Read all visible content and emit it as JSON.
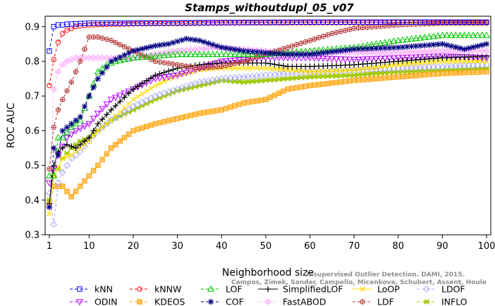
{
  "chart_data": {
    "type": "line",
    "title": "Stamps_withoutdupl_05_v07",
    "xlabel": "Neighborhood size",
    "ylabel": "ROC AUC",
    "xlim": [
      1,
      100
    ],
    "ylim": [
      0.3,
      0.93
    ],
    "xticks": [
      1,
      10,
      20,
      30,
      40,
      50,
      60,
      70,
      80,
      90,
      100
    ],
    "yticks": [
      0.3,
      0.4,
      0.5,
      0.6,
      0.7,
      0.8,
      0.9
    ],
    "grid": false,
    "legend_position": "bottom",
    "watermark": [
      "Unsupervised Outlier Detection. DAMI, 2015.",
      "Campos, Zimek, Sander, Campello, Micenkova, Schubert, Assent, Houle"
    ],
    "series": [
      {
        "name": "kNN",
        "color": "#0000ff",
        "marker": "square",
        "line": "dashed",
        "points": [
          [
            1,
            0.83
          ],
          [
            2,
            0.9
          ],
          [
            3,
            0.905
          ],
          [
            4,
            0.905
          ],
          [
            5,
            0.907
          ],
          [
            10,
            0.91
          ],
          [
            20,
            0.91
          ],
          [
            40,
            0.912
          ],
          [
            60,
            0.913
          ],
          [
            80,
            0.913
          ],
          [
            100,
            0.913
          ]
        ]
      },
      {
        "name": "kNNW",
        "color": "#ff0000",
        "marker": "circle",
        "line": "dashed",
        "points": [
          [
            1,
            0.73
          ],
          [
            2,
            0.805
          ],
          [
            3,
            0.855
          ],
          [
            4,
            0.88
          ],
          [
            5,
            0.89
          ],
          [
            7,
            0.9
          ],
          [
            10,
            0.905
          ],
          [
            20,
            0.908
          ],
          [
            40,
            0.91
          ],
          [
            60,
            0.911
          ],
          [
            80,
            0.912
          ],
          [
            100,
            0.912
          ]
        ]
      },
      {
        "name": "LOF",
        "color": "#00c800",
        "marker": "triangle-up",
        "line": "dashed",
        "points": [
          [
            1,
            0.47
          ],
          [
            2,
            0.47
          ],
          [
            3,
            0.58
          ],
          [
            4,
            0.58
          ],
          [
            6,
            0.61
          ],
          [
            8,
            0.63
          ],
          [
            10,
            0.7
          ],
          [
            12,
            0.77
          ],
          [
            14,
            0.79
          ],
          [
            16,
            0.8
          ],
          [
            20,
            0.81
          ],
          [
            25,
            0.815
          ],
          [
            30,
            0.82
          ],
          [
            40,
            0.82
          ],
          [
            50,
            0.82
          ],
          [
            60,
            0.83
          ],
          [
            70,
            0.84
          ],
          [
            80,
            0.86
          ],
          [
            90,
            0.875
          ],
          [
            100,
            0.875
          ]
        ]
      },
      {
        "name": "SimplifiedLOF",
        "color": "#000000",
        "marker": "plus",
        "line": "solid",
        "points": [
          [
            1,
            0.39
          ],
          [
            2,
            0.5
          ],
          [
            3,
            0.54
          ],
          [
            5,
            0.56
          ],
          [
            7,
            0.55
          ],
          [
            10,
            0.58
          ],
          [
            12,
            0.62
          ],
          [
            15,
            0.66
          ],
          [
            20,
            0.72
          ],
          [
            25,
            0.76
          ],
          [
            30,
            0.78
          ],
          [
            35,
            0.79
          ],
          [
            40,
            0.795
          ],
          [
            50,
            0.795
          ],
          [
            55,
            0.785
          ],
          [
            60,
            0.785
          ],
          [
            70,
            0.79
          ],
          [
            80,
            0.8
          ],
          [
            90,
            0.81
          ],
          [
            100,
            0.815
          ]
        ]
      },
      {
        "name": "LoOP",
        "color": "#ffdc00",
        "marker": "x",
        "line": "solid",
        "points": [
          [
            1,
            0.36
          ],
          [
            2,
            0.47
          ],
          [
            4,
            0.52
          ],
          [
            6,
            0.53
          ],
          [
            8,
            0.55
          ],
          [
            10,
            0.57
          ],
          [
            12,
            0.6
          ],
          [
            15,
            0.63
          ],
          [
            20,
            0.69
          ],
          [
            25,
            0.73
          ],
          [
            30,
            0.76
          ],
          [
            35,
            0.775
          ],
          [
            40,
            0.78
          ],
          [
            50,
            0.78
          ],
          [
            60,
            0.77
          ],
          [
            70,
            0.775
          ],
          [
            80,
            0.79
          ],
          [
            90,
            0.8
          ],
          [
            100,
            0.8
          ]
        ]
      },
      {
        "name": "LDOF",
        "color": "#aaaaff",
        "marker": "diamond",
        "line": "dashed",
        "points": [
          [
            1,
            0.42
          ],
          [
            2,
            0.33
          ],
          [
            3,
            0.45
          ],
          [
            4,
            0.48
          ],
          [
            6,
            0.52
          ],
          [
            8,
            0.54
          ],
          [
            10,
            0.57
          ],
          [
            12,
            0.6
          ],
          [
            15,
            0.63
          ],
          [
            20,
            0.67
          ],
          [
            25,
            0.7
          ],
          [
            30,
            0.72
          ],
          [
            35,
            0.74
          ],
          [
            40,
            0.75
          ],
          [
            50,
            0.76
          ],
          [
            60,
            0.77
          ],
          [
            70,
            0.775
          ],
          [
            80,
            0.78
          ],
          [
            90,
            0.785
          ],
          [
            100,
            0.79
          ]
        ]
      },
      {
        "name": "ODIN",
        "color": "#b400ff",
        "marker": "triangle-down",
        "line": "dashed",
        "points": [
          [
            1,
            0.45
          ],
          [
            2,
            0.49
          ],
          [
            3,
            0.53
          ],
          [
            5,
            0.58
          ],
          [
            7,
            0.6
          ],
          [
            10,
            0.62
          ],
          [
            12,
            0.65
          ],
          [
            15,
            0.69
          ],
          [
            20,
            0.72
          ],
          [
            25,
            0.75
          ],
          [
            30,
            0.76
          ],
          [
            35,
            0.78
          ],
          [
            40,
            0.8
          ],
          [
            50,
            0.81
          ],
          [
            60,
            0.81
          ],
          [
            70,
            0.805
          ],
          [
            80,
            0.81
          ],
          [
            90,
            0.815
          ],
          [
            100,
            0.81
          ]
        ]
      },
      {
        "name": "KDEOS",
        "color": "#ffa000",
        "marker": "square-fill",
        "line": "dashed",
        "points": [
          [
            1,
            0.39
          ],
          [
            2,
            0.44
          ],
          [
            3,
            0.44
          ],
          [
            4,
            0.44
          ],
          [
            6,
            0.41
          ],
          [
            8,
            0.44
          ],
          [
            10,
            0.47
          ],
          [
            12,
            0.5
          ],
          [
            15,
            0.55
          ],
          [
            20,
            0.6
          ],
          [
            25,
            0.62
          ],
          [
            30,
            0.635
          ],
          [
            35,
            0.65
          ],
          [
            40,
            0.66
          ],
          [
            45,
            0.68
          ],
          [
            50,
            0.69
          ],
          [
            55,
            0.72
          ],
          [
            60,
            0.73
          ],
          [
            70,
            0.745
          ],
          [
            80,
            0.755
          ],
          [
            90,
            0.765
          ],
          [
            100,
            0.77
          ]
        ]
      },
      {
        "name": "COF",
        "color": "#000080",
        "marker": "star",
        "line": "dashed",
        "points": [
          [
            1,
            0.38
          ],
          [
            2,
            0.55
          ],
          [
            3,
            0.53
          ],
          [
            4,
            0.6
          ],
          [
            6,
            0.62
          ],
          [
            8,
            0.64
          ],
          [
            10,
            0.7
          ],
          [
            12,
            0.75
          ],
          [
            15,
            0.8
          ],
          [
            20,
            0.83
          ],
          [
            25,
            0.845
          ],
          [
            28,
            0.85
          ],
          [
            32,
            0.865
          ],
          [
            35,
            0.86
          ],
          [
            40,
            0.84
          ],
          [
            45,
            0.83
          ],
          [
            50,
            0.825
          ],
          [
            55,
            0.82
          ],
          [
            60,
            0.82
          ],
          [
            70,
            0.835
          ],
          [
            80,
            0.84
          ],
          [
            90,
            0.85
          ],
          [
            95,
            0.835
          ],
          [
            100,
            0.85
          ]
        ]
      },
      {
        "name": "FastABOD",
        "color": "#ffb4ff",
        "marker": "diamond-fill",
        "line": "dashed",
        "points": [
          [
            1,
            0.38
          ],
          [
            2,
            0.72
          ],
          [
            3,
            0.77
          ],
          [
            4,
            0.79
          ],
          [
            5,
            0.8
          ],
          [
            7,
            0.81
          ],
          [
            10,
            0.81
          ],
          [
            15,
            0.81
          ],
          [
            20,
            0.81
          ],
          [
            30,
            0.83
          ],
          [
            40,
            0.84
          ],
          [
            50,
            0.83
          ],
          [
            60,
            0.825
          ],
          [
            70,
            0.825
          ],
          [
            80,
            0.825
          ],
          [
            90,
            0.83
          ],
          [
            100,
            0.83
          ]
        ]
      },
      {
        "name": "LDF",
        "color": "#b43c3c",
        "marker": "circle-plus",
        "line": "dashed",
        "points": [
          [
            1,
            0.49
          ],
          [
            2,
            0.61
          ],
          [
            3,
            0.66
          ],
          [
            4,
            0.69
          ],
          [
            6,
            0.74
          ],
          [
            8,
            0.8
          ],
          [
            10,
            0.87
          ],
          [
            12,
            0.87
          ],
          [
            15,
            0.86
          ],
          [
            20,
            0.83
          ],
          [
            25,
            0.8
          ],
          [
            30,
            0.79
          ],
          [
            35,
            0.78
          ],
          [
            40,
            0.785
          ],
          [
            45,
            0.8
          ],
          [
            50,
            0.82
          ],
          [
            55,
            0.84
          ],
          [
            60,
            0.86
          ],
          [
            65,
            0.88
          ],
          [
            70,
            0.895
          ],
          [
            80,
            0.905
          ],
          [
            90,
            0.91
          ],
          [
            100,
            0.91
          ]
        ]
      },
      {
        "name": "INFLO",
        "color": "#a0c800",
        "marker": "star-fill",
        "line": "dashed",
        "points": [
          [
            1,
            0.4
          ],
          [
            2,
            0.47
          ],
          [
            3,
            0.49
          ],
          [
            4,
            0.52
          ],
          [
            6,
            0.55
          ],
          [
            8,
            0.57
          ],
          [
            10,
            0.58
          ],
          [
            12,
            0.6
          ],
          [
            15,
            0.63
          ],
          [
            20,
            0.66
          ],
          [
            25,
            0.69
          ],
          [
            30,
            0.715
          ],
          [
            35,
            0.73
          ],
          [
            40,
            0.745
          ],
          [
            45,
            0.74
          ],
          [
            50,
            0.745
          ],
          [
            60,
            0.755
          ],
          [
            70,
            0.76
          ],
          [
            80,
            0.77
          ],
          [
            90,
            0.775
          ],
          [
            100,
            0.78
          ]
        ]
      }
    ]
  }
}
